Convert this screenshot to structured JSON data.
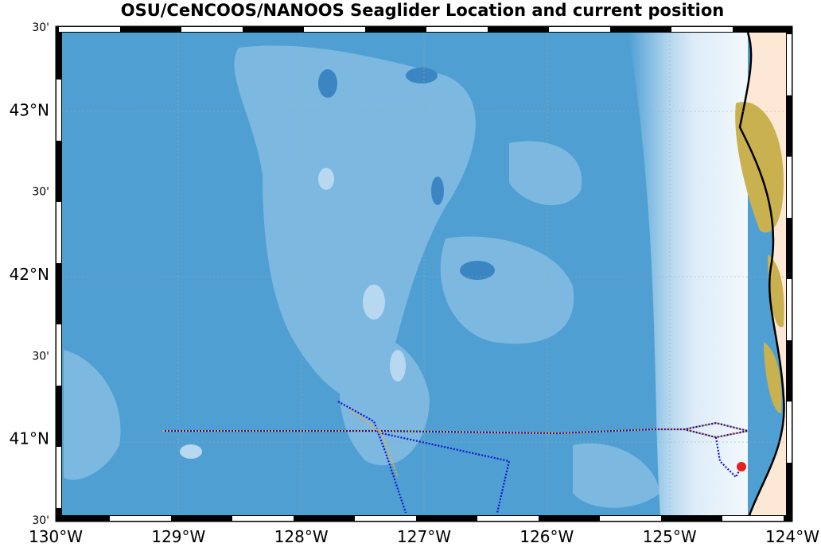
{
  "map": {
    "title": "OSU/CeNCOOS/NANOOS Seaglider Location and current position",
    "x_labels": [
      "130°W",
      "129°W",
      "128°W",
      "127°W",
      "126°W",
      "125°W",
      "124°W"
    ],
    "y_labels": [
      "30'",
      "43°N",
      "30'",
      "42°N",
      "30'",
      "41°N",
      "30'"
    ]
  }
}
